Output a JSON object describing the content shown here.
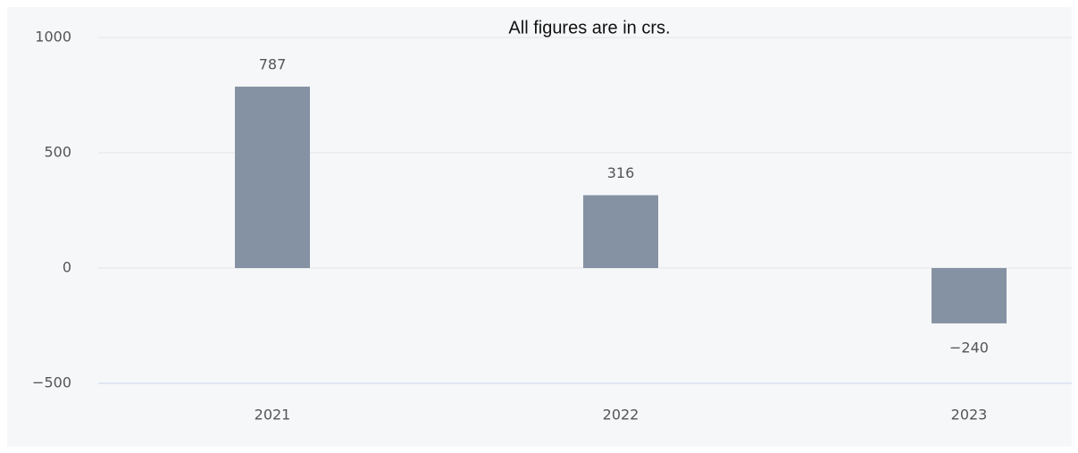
{
  "chart_data": {
    "type": "bar",
    "title": "All figures are in crs.",
    "categories": [
      "2021",
      "2022",
      "2023"
    ],
    "values": [
      787,
      316,
      -240
    ],
    "value_labels": [
      "787",
      "316",
      "−240"
    ],
    "color": "#8592a3",
    "ylim": [
      -500,
      1000
    ],
    "yticks": [
      {
        "value": -500,
        "label": "−500"
      },
      0,
      500,
      1000
    ],
    "grid": true
  }
}
